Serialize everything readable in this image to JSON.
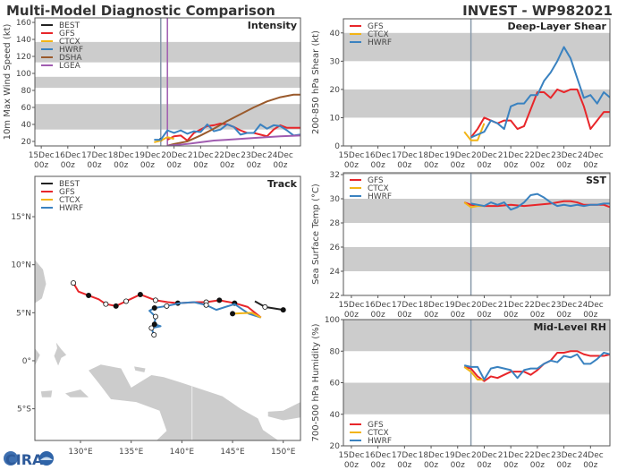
{
  "header": {
    "left_title": "Multi-Model Diagnostic Comparison",
    "right_title": "INVEST - WP982021"
  },
  "logo": {
    "text": "CIRA"
  },
  "colors": {
    "BEST": "#222222",
    "GFS": "#e8262a",
    "CTCX": "#f2b416",
    "HWRF": "#3a82c0",
    "DSHA": "#9a5a2c",
    "LGEA": "#a05cb0",
    "band": "#cccccc",
    "vline": "#8899aa",
    "vline2": "#a05cb0",
    "land": "#cccccc"
  },
  "chart_data": [
    {
      "id": "intensity",
      "type": "line",
      "title": "Intensity",
      "ylabel": "10m Max Wind Speed (kt)",
      "x_unit": "days since 15Dec 00z",
      "xticks": [
        0,
        1,
        2,
        3,
        4,
        5,
        6,
        7,
        8,
        9
      ],
      "xtick_labels": [
        [
          "15Dec",
          "00z"
        ],
        [
          "16Dec",
          "00z"
        ],
        [
          "17Dec",
          "00z"
        ],
        [
          "18Dec",
          "00z"
        ],
        [
          "19Dec",
          "00z"
        ],
        [
          "20Dec",
          "00z"
        ],
        [
          "21Dec",
          "00z"
        ],
        [
          "22Dec",
          "00z"
        ],
        [
          "23Dec",
          "00z"
        ],
        [
          "24Dec",
          "00z"
        ]
      ],
      "xlim": [
        -0.24,
        9.76
      ],
      "ylim": [
        14.7,
        165.3
      ],
      "yticks": [
        20,
        40,
        60,
        80,
        100,
        120,
        140,
        160
      ],
      "bands": [
        [
          34,
          64
        ],
        [
          83,
          96
        ],
        [
          113,
          137
        ]
      ],
      "vlines": [
        {
          "x": 4.5,
          "color": "vline"
        },
        {
          "x": 4.75,
          "color": "vline2"
        }
      ],
      "legend": [
        "BEST",
        "GFS",
        "CTCX",
        "HWRF",
        "DSHA",
        "LGEA"
      ],
      "series": [
        {
          "name": "BEST",
          "x": [
            4.5
          ],
          "y": [
            22
          ]
        },
        {
          "name": "GFS",
          "x": [
            4.75,
            5,
            5.25,
            5.5,
            5.75,
            6,
            6.25,
            6.5,
            6.75,
            7,
            7.25,
            7.5,
            7.75,
            8,
            8.25,
            8.5,
            8.75,
            9,
            9.25,
            9.5,
            9.75
          ],
          "y": [
            22,
            26,
            27,
            21,
            30,
            34,
            38,
            39,
            41,
            40,
            37,
            33,
            30,
            30,
            28,
            26,
            34,
            39,
            36,
            36,
            36
          ]
        },
        {
          "name": "CTCX",
          "x": [
            4.25,
            4.5,
            4.75,
            5
          ],
          "y": [
            19,
            21,
            25,
            23
          ]
        },
        {
          "name": "HWRF",
          "x": [
            4.25,
            4.5,
            4.75,
            5,
            5.25,
            5.5,
            5.75,
            6,
            6.25,
            6.5,
            6.75,
            7,
            7.25,
            7.5,
            7.75,
            8,
            8.25,
            8.5,
            8.75,
            9,
            9.25,
            9.5,
            9.75
          ],
          "y": [
            22,
            22,
            33,
            30,
            33,
            29,
            32,
            31,
            40,
            32,
            34,
            40,
            37,
            28,
            30,
            30,
            40,
            35,
            39,
            38,
            33,
            27,
            28
          ]
        },
        {
          "name": "DSHA",
          "x": [
            4.75,
            5,
            5.5,
            6,
            6.5,
            7,
            7.5,
            8,
            8.5,
            9,
            9.5,
            9.75
          ],
          "y": [
            15,
            17,
            20,
            27,
            35,
            44,
            52,
            60,
            67,
            72,
            75,
            75
          ]
        },
        {
          "name": "LGEA",
          "x": [
            4.75,
            5.5,
            6,
            6.5,
            7,
            8,
            9,
            9.75
          ],
          "y": [
            15,
            17,
            19,
            21,
            22,
            24,
            26,
            27
          ]
        }
      ]
    },
    {
      "id": "shear",
      "type": "line",
      "title": "Deep-Layer Shear",
      "ylabel": "200-850 hPa Shear (kt)",
      "xticks": [
        0,
        1,
        2,
        3,
        4,
        5,
        6,
        7,
        8,
        9
      ],
      "xtick_labels": [
        [
          "15Dec",
          "00z"
        ],
        [
          "16Dec",
          "00z"
        ],
        [
          "17Dec",
          "00z"
        ],
        [
          "18Dec",
          "00z"
        ],
        [
          "19Dec",
          "00z"
        ],
        [
          "20Dec",
          "00z"
        ],
        [
          "21Dec",
          "00z"
        ],
        [
          "22Dec",
          "00z"
        ],
        [
          "23Dec",
          "00z"
        ],
        [
          "24Dec",
          "00z"
        ]
      ],
      "xlim": [
        -0.3,
        9.73
      ],
      "ylim": [
        0,
        45
      ],
      "yticks": [
        0,
        10,
        20,
        30,
        40
      ],
      "bands": [
        [
          10,
          20
        ],
        [
          30,
          40
        ]
      ],
      "vlines": [
        {
          "x": 4.5,
          "color": "vline"
        }
      ],
      "legend": [
        "GFS",
        "CTCX",
        "HWRF"
      ],
      "series": [
        {
          "name": "GFS",
          "x": [
            4.5,
            4.75,
            5,
            5.25,
            5.5,
            5.75,
            6,
            6.25,
            6.5,
            6.75,
            7,
            7.25,
            7.5,
            7.75,
            8,
            8.25,
            8.5,
            8.75,
            9,
            9.25,
            9.5,
            9.75
          ],
          "y": [
            3,
            6,
            10,
            9,
            8,
            9,
            9,
            6,
            7,
            13,
            19,
            19,
            17,
            20,
            19,
            20,
            20,
            14,
            6,
            9,
            12,
            12
          ]
        },
        {
          "name": "CTCX",
          "x": [
            4.25,
            4.5,
            4.75,
            5
          ],
          "y": [
            5,
            2,
            2,
            8
          ]
        },
        {
          "name": "HWRF",
          "x": [
            4.5,
            4.75,
            5,
            5.25,
            5.5,
            5.75,
            6,
            6.25,
            6.5,
            6.75,
            7,
            7.25,
            7.5,
            7.75,
            8,
            8.25,
            8.5,
            8.75,
            9,
            9.25,
            9.5,
            9.75
          ],
          "y": [
            3,
            4,
            5,
            9,
            8,
            6,
            14,
            15,
            15,
            18,
            18,
            23,
            26,
            30,
            35,
            31,
            24,
            17,
            18,
            15,
            19,
            17
          ]
        }
      ]
    },
    {
      "id": "sst",
      "type": "line",
      "title": "SST",
      "ylabel": "Sea Surface Temp (°C)",
      "xticks": [
        0,
        1,
        2,
        3,
        4,
        5,
        6,
        7,
        8,
        9
      ],
      "xtick_labels": [
        [
          "15Dec",
          "00z"
        ],
        [
          "16Dec",
          "00z"
        ],
        [
          "17Dec",
          "00z"
        ],
        [
          "18Dec",
          "00z"
        ],
        [
          "19Dec",
          "00z"
        ],
        [
          "20Dec",
          "00z"
        ],
        [
          "21Dec",
          "00z"
        ],
        [
          "22Dec",
          "00z"
        ],
        [
          "23Dec",
          "00z"
        ],
        [
          "24Dec",
          "00z"
        ]
      ],
      "xlim": [
        -0.3,
        9.73
      ],
      "ylim": [
        22,
        32.15
      ],
      "yticks": [
        22,
        24,
        26,
        28,
        30,
        32
      ],
      "bands": [
        [
          24,
          26
        ],
        [
          28,
          30
        ],
        [
          32,
          33
        ]
      ],
      "vlines": [
        {
          "x": 4.5,
          "color": "vline"
        }
      ],
      "legend": [
        "GFS",
        "CTCX",
        "HWRF"
      ],
      "series": [
        {
          "name": "GFS",
          "x": [
            4.25,
            4.5,
            5,
            5.5,
            6,
            6.5,
            7,
            7.5,
            8,
            8.25,
            8.5,
            8.75,
            9,
            9.5,
            9.75
          ],
          "y": [
            29.7,
            29.5,
            29.4,
            29.4,
            29.5,
            29.4,
            29.5,
            29.6,
            29.8,
            29.8,
            29.7,
            29.5,
            29.5,
            29.5,
            29.3
          ]
        },
        {
          "name": "CTCX",
          "x": [
            4.25,
            4.5,
            4.75,
            5
          ],
          "y": [
            29.7,
            29.3,
            29.4,
            29.4
          ]
        },
        {
          "name": "HWRF",
          "x": [
            4.5,
            4.75,
            5,
            5.25,
            5.5,
            5.75,
            6,
            6.25,
            6.5,
            6.75,
            7,
            7.25,
            7.5,
            7.75,
            8,
            8.25,
            8.5,
            8.75,
            9,
            9.25,
            9.5,
            9.75
          ],
          "y": [
            29.6,
            29.5,
            29.4,
            29.7,
            29.5,
            29.7,
            29.1,
            29.3,
            29.7,
            30.3,
            30.4,
            30.1,
            29.7,
            29.4,
            29.5,
            29.4,
            29.5,
            29.4,
            29.5,
            29.5,
            29.6,
            29.6
          ]
        }
      ]
    },
    {
      "id": "rh",
      "type": "line",
      "title": "Mid-Level RH",
      "ylabel": "700-500 hPa Humidity (%)",
      "xticks": [
        0,
        1,
        2,
        3,
        4,
        5,
        6,
        7,
        8,
        9
      ],
      "xtick_labels": [
        [
          "15Dec",
          "00z"
        ],
        [
          "16Dec",
          "00z"
        ],
        [
          "17Dec",
          "00z"
        ],
        [
          "18Dec",
          "00z"
        ],
        [
          "19Dec",
          "00z"
        ],
        [
          "20Dec",
          "00z"
        ],
        [
          "21Dec",
          "00z"
        ],
        [
          "22Dec",
          "00z"
        ],
        [
          "23Dec",
          "00z"
        ],
        [
          "24Dec",
          "00z"
        ]
      ],
      "xlim": [
        -0.3,
        9.73
      ],
      "ylim": [
        20,
        100
      ],
      "yticks": [
        20,
        40,
        60,
        80,
        100
      ],
      "bands": [
        [
          40,
          60
        ],
        [
          80,
          100
        ]
      ],
      "vlines": [
        {
          "x": 4.5,
          "color": "vline"
        }
      ],
      "legend": [
        "GFS",
        "CTCX",
        "HWRF"
      ],
      "series": [
        {
          "name": "GFS",
          "x": [
            4.25,
            4.5,
            4.75,
            5,
            5.25,
            5.5,
            5.75,
            6,
            6.25,
            6.5,
            6.75,
            7,
            7.25,
            7.5,
            7.75,
            8,
            8.25,
            8.5,
            8.75,
            9,
            9.25,
            9.5,
            9.75
          ],
          "y": [
            70,
            69,
            64,
            61,
            64,
            63,
            65,
            67,
            67,
            67,
            65,
            68,
            72,
            74,
            79,
            79,
            80,
            80,
            78,
            77,
            77,
            77,
            78
          ]
        },
        {
          "name": "CTCX",
          "x": [
            4.25,
            4.5,
            4.75,
            5
          ],
          "y": [
            70,
            67,
            62,
            62
          ]
        },
        {
          "name": "HWRF",
          "x": [
            4.25,
            4.5,
            4.75,
            5,
            5.25,
            5.5,
            5.75,
            6,
            6.25,
            6.5,
            6.75,
            7,
            7.25,
            7.5,
            7.75,
            8,
            8.25,
            8.5,
            8.75,
            9,
            9.25,
            9.5,
            9.75
          ],
          "y": [
            71,
            70,
            70,
            62,
            69,
            70,
            69,
            68,
            63,
            68,
            69,
            69,
            72,
            74,
            73,
            77,
            76,
            78,
            72,
            72,
            75,
            79,
            78
          ]
        }
      ]
    },
    {
      "id": "track",
      "type": "scatter",
      "title": "Track",
      "xlim": [
        125.5,
        151.7
      ],
      "ylim": [
        -8.3,
        19.2
      ],
      "xticks": [
        130,
        135,
        140,
        145,
        150
      ],
      "xtick_labels": [
        "130°E",
        "135°E",
        "140°E",
        "145°E",
        "150°E"
      ],
      "yticks": [
        15,
        10,
        5,
        0,
        -5
      ],
      "ytick_labels": [
        "15°N",
        "10°N",
        "5°N",
        "0°",
        "5°S"
      ],
      "legend": [
        "BEST",
        "GFS",
        "CTCX",
        "HWRF"
      ],
      "series": [
        {
          "name": "GFS",
          "lon": [
            129.3,
            129.8,
            130.8,
            131.8,
            132.5,
            133.5,
            134.5,
            135.9,
            137.4,
            138.6,
            139.6,
            141.5,
            142.4,
            143.7,
            145.2,
            146.5,
            147.8
          ],
          "lat": [
            8.1,
            7.2,
            6.8,
            6.4,
            5.9,
            5.7,
            6.2,
            6.9,
            6.3,
            6.1,
            6.0,
            6.1,
            6.1,
            6.3,
            6.0,
            5.6,
            4.5
          ],
          "markers": [
            "open",
            null,
            "filled",
            null,
            "open",
            "filled",
            "open",
            "filled",
            "open",
            null,
            "filled",
            null,
            "open",
            "filled",
            "filled",
            null,
            null
          ]
        },
        {
          "name": "HWRF",
          "lon": [
            147.8,
            146.6,
            145.2,
            143.4,
            142.4,
            141.2,
            139.8,
            138.5,
            137.3,
            136.8,
            137.4,
            137.3,
            137.9,
            137.0,
            137.25
          ],
          "lat": [
            4.5,
            4.9,
            5.9,
            5.3,
            5.8,
            6.1,
            6.0,
            5.7,
            5.5,
            5.2,
            4.6,
            3.8,
            3.6,
            3.4,
            2.7
          ],
          "markers": [
            null,
            null,
            null,
            null,
            "open",
            null,
            null,
            "open",
            "filled",
            null,
            "open",
            "filled",
            null,
            "open",
            "open"
          ]
        },
        {
          "name": "CTCX",
          "lon": [
            145.0,
            146.9,
            147.8
          ],
          "lat": [
            4.9,
            5.0,
            4.5
          ],
          "markers": [
            "filled",
            null,
            null
          ]
        },
        {
          "name": "BEST",
          "lon": [
            147.2,
            148.2,
            150.0
          ],
          "lat": [
            6.2,
            5.6,
            5.3
          ],
          "markers": [
            null,
            "open",
            "filled"
          ]
        }
      ]
    }
  ]
}
